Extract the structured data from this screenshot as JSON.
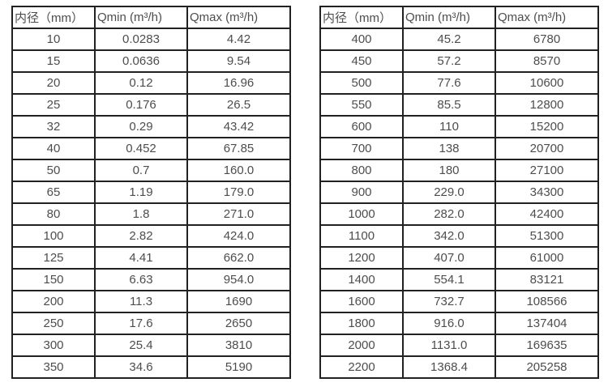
{
  "tables": [
    {
      "name": "small-diameter-flow-table",
      "headers": [
        "内径（mm）",
        "Qmin (m³/h)",
        "Qmax (m³/h)"
      ],
      "rows": [
        [
          "10",
          "0.0283",
          "4.42"
        ],
        [
          "15",
          "0.0636",
          "9.54"
        ],
        [
          "20",
          "0.12",
          "16.96"
        ],
        [
          "25",
          "0.176",
          "26.5"
        ],
        [
          "32",
          "0.29",
          "43.42"
        ],
        [
          "40",
          "0.452",
          "67.85"
        ],
        [
          "50",
          "0.7",
          "160.0"
        ],
        [
          "65",
          "1.19",
          "179.0"
        ],
        [
          "80",
          "1.8",
          "271.0"
        ],
        [
          "100",
          "2.82",
          "424.0"
        ],
        [
          "125",
          "4.41",
          "662.0"
        ],
        [
          "150",
          "6.63",
          "954.0"
        ],
        [
          "200",
          "11.3",
          "1690"
        ],
        [
          "250",
          "17.6",
          "2650"
        ],
        [
          "300",
          "25.4",
          "3810"
        ],
        [
          "350",
          "34.6",
          "5190"
        ]
      ]
    },
    {
      "name": "large-diameter-flow-table",
      "headers": [
        "内径（mm）",
        "Qmin (m³/h)",
        "Qmax (m³/h)"
      ],
      "rows": [
        [
          "400",
          "45.2",
          "6780"
        ],
        [
          "450",
          "57.2",
          "8570"
        ],
        [
          "500",
          "77.6",
          "10600"
        ],
        [
          "550",
          "85.5",
          "12800"
        ],
        [
          "600",
          "110",
          "15200"
        ],
        [
          "700",
          "138",
          "20700"
        ],
        [
          "800",
          "180",
          "27100"
        ],
        [
          "900",
          "229.0",
          "34300"
        ],
        [
          "1000",
          "282.0",
          "42400"
        ],
        [
          "1100",
          "342.0",
          "51300"
        ],
        [
          "1200",
          "407.0",
          "61000"
        ],
        [
          "1400",
          "554.1",
          "83121"
        ],
        [
          "1600",
          "732.7",
          "108566"
        ],
        [
          "1800",
          "916.0",
          "137404"
        ],
        [
          "2000",
          "1131.0",
          "169635"
        ],
        [
          "2200",
          "1368.4",
          "205258"
        ]
      ]
    }
  ],
  "colors": {
    "text": "#4d4d4d",
    "border": "#212121",
    "background": "#ffffff"
  }
}
